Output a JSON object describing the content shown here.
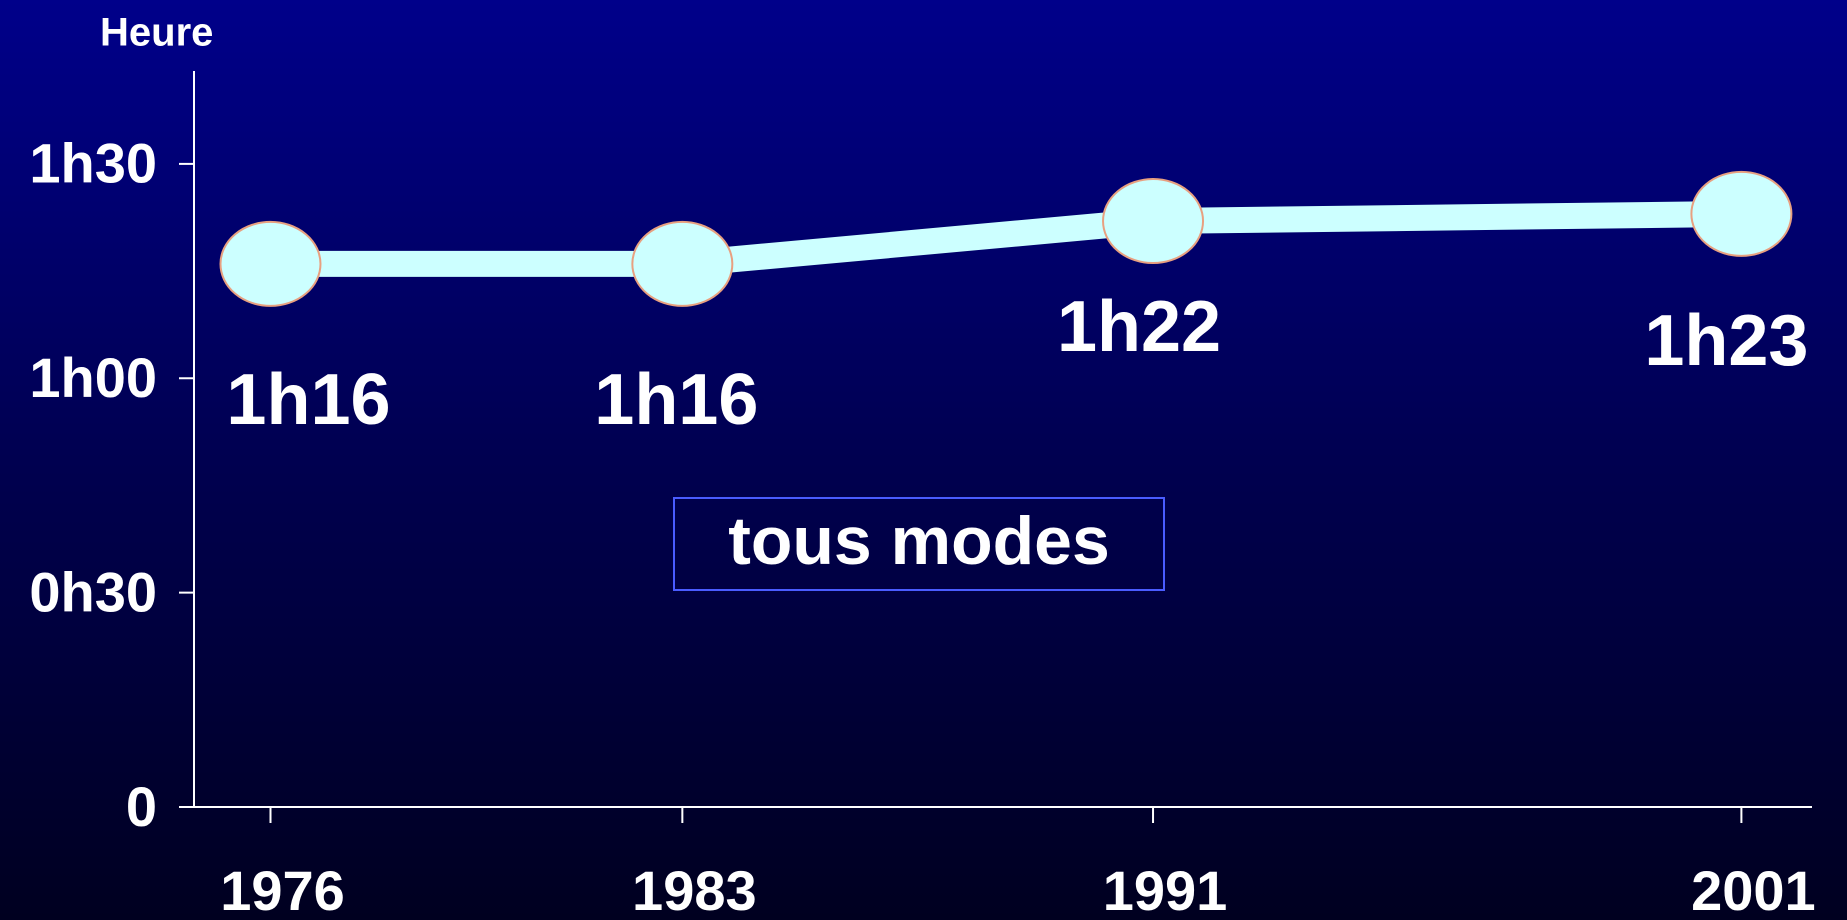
{
  "chart_data": {
    "type": "line",
    "y_label": "Heure",
    "annotation": "tous modes",
    "x": [
      1976,
      1983,
      1991,
      2001
    ],
    "series": [
      {
        "color": "#ccffff",
        "values": [
          76,
          76,
          82,
          83
        ],
        "value_labels": [
          "1h16",
          "1h16",
          "1h22",
          "1h23"
        ]
      }
    ],
    "xlim": [
      1974.7,
      2002.2
    ],
    "xticks": [
      1976,
      1983,
      1991,
      2001
    ],
    "ylim": [
      0,
      103
    ],
    "yticks": [
      0,
      {
        "value": 30,
        "label": "0h30"
      },
      {
        "value": 60,
        "label": "1h00"
      },
      {
        "value": 90,
        "label": "1h30"
      }
    ],
    "marker_edge_color": "#e8a080"
  }
}
